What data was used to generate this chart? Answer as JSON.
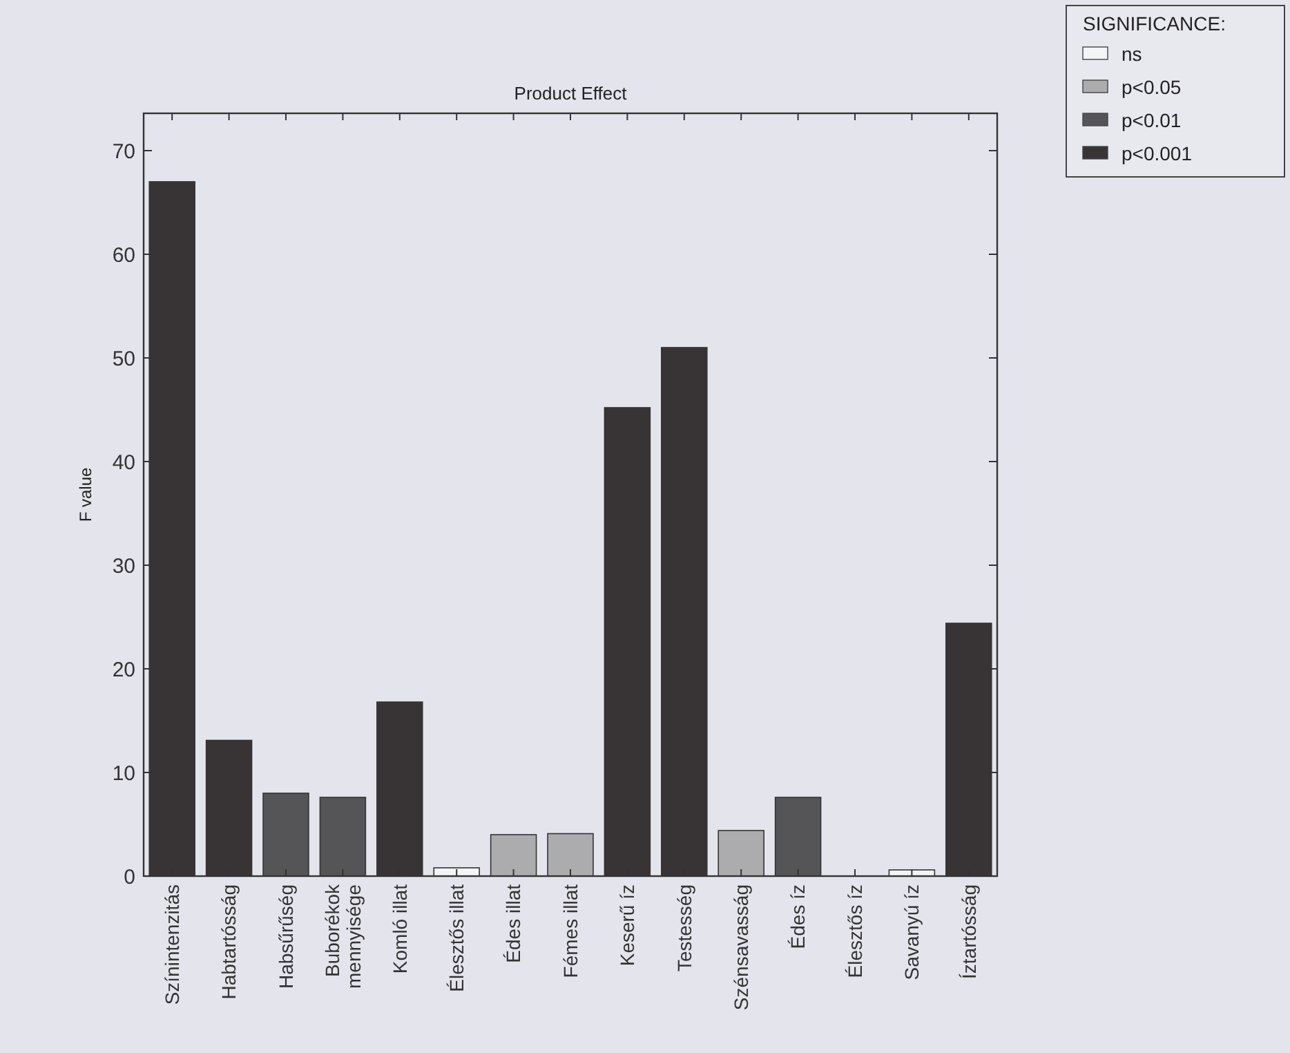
{
  "chart_data": {
    "type": "bar",
    "title": "Product Effect",
    "ylabel": "F value",
    "legend_title": "SIGNIFICANCE:",
    "categories": [
      "Színintenzitás",
      "Habtartósság",
      "Habsűrűség",
      "Buborékok\nmennyisége",
      "Komló illat",
      "Élesztős illat",
      "Édes illat",
      "Fémes illat",
      "Keserű íz",
      "Testesség",
      "Szénsavasság",
      "Édes íz",
      "Élesztős íz",
      "Savanyú íz",
      "Íztartósság"
    ],
    "stacked": true,
    "series": [
      {
        "name": "ns",
        "color": "#f4f4f6",
        "values": [
          null,
          null,
          null,
          null,
          null,
          0.8,
          null,
          null,
          null,
          null,
          null,
          null,
          0,
          0.6,
          null
        ]
      },
      {
        "name": "p<0.05",
        "color": "#acacae",
        "values": [
          null,
          null,
          null,
          null,
          null,
          null,
          4.0,
          4.1,
          null,
          null,
          4.4,
          null,
          null,
          null,
          null
        ]
      },
      {
        "name": "p<0.01",
        "color": "#555457",
        "values": [
          null,
          null,
          8.0,
          7.6,
          null,
          null,
          null,
          null,
          null,
          null,
          null,
          7.6,
          null,
          null,
          null
        ]
      },
      {
        "name": "p<0.001",
        "color": "#383335",
        "values": [
          67.0,
          13.1,
          null,
          null,
          16.8,
          null,
          null,
          null,
          45.2,
          51.0,
          null,
          null,
          null,
          null,
          24.4
        ]
      }
    ],
    "ylim": [
      0,
      73.6
    ],
    "yticks": [
      0,
      10,
      20,
      30,
      40,
      50,
      60,
      70
    ],
    "grid": false,
    "legend": "top right"
  }
}
